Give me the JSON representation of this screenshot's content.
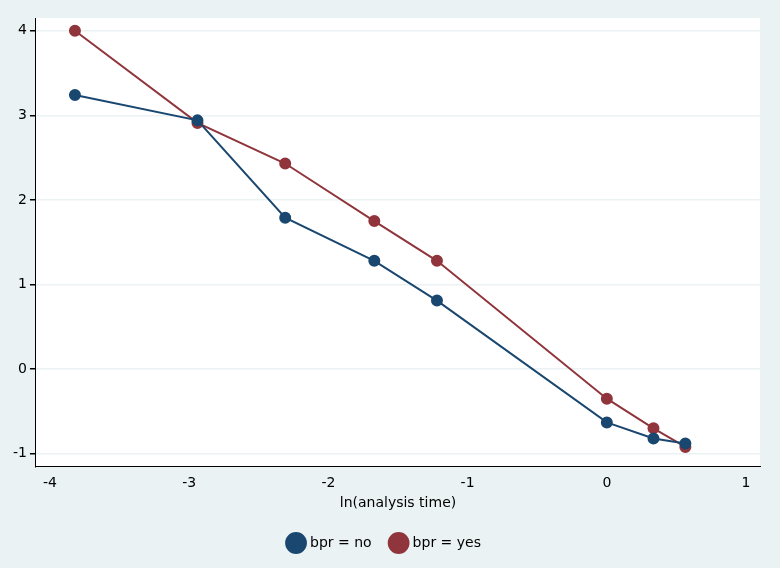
{
  "chart_data": {
    "type": "line",
    "x_label": "ln(analysis time)",
    "x": [
      -3.82,
      -2.94,
      -2.31,
      -1.67,
      -1.22,
      0,
      0.335,
      0.564
    ],
    "series": [
      {
        "name": "bpr = no",
        "color": "#1a476f",
        "values": [
          3.24,
          2.94,
          1.79,
          1.28,
          0.81,
          -0.63,
          -0.82,
          -0.88
        ]
      },
      {
        "name": "bpr = yes",
        "color": "#90353b",
        "values": [
          4.0,
          2.91,
          2.43,
          1.75,
          1.28,
          -0.35,
          -0.7,
          -0.92
        ]
      }
    ],
    "xlim": [
      -4.1,
      1.1
    ],
    "xticks": [
      -4,
      -3,
      -2,
      -1,
      0,
      1
    ],
    "ylim": [
      -1.15,
      4.15
    ],
    "yticks": [
      -1,
      0,
      1,
      2,
      3,
      4
    ],
    "grid": "y",
    "legend": "bottom",
    "marker": "circle",
    "line_style": "solid"
  }
}
